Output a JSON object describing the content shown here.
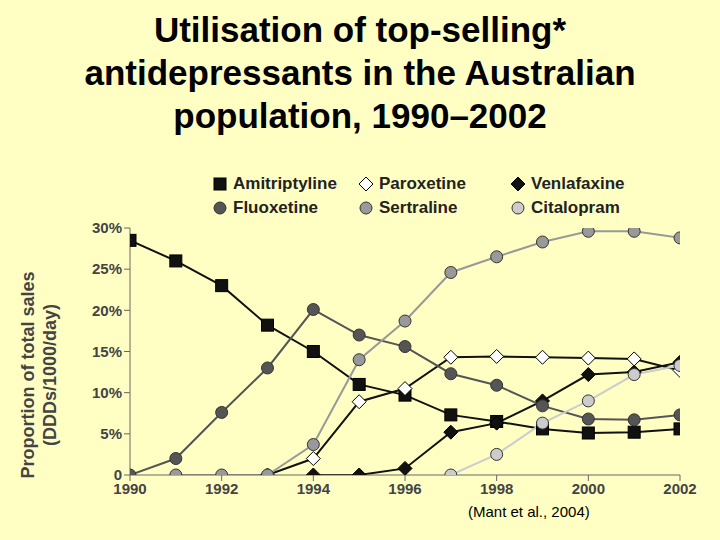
{
  "chart_data": {
    "type": "line",
    "title": "Utilisation of top-selling* antidepressants in the Australian population, 1990–2002",
    "y_label": "Proportion of total sales (DDDs/1000/day)",
    "annotation": "(Mant et al., 2004)",
    "legend": "top",
    "grid": false,
    "x": [
      1990,
      1991,
      1992,
      1993,
      1994,
      1995,
      1996,
      1997,
      1998,
      1999,
      2000,
      2001,
      2002
    ],
    "xlim": [
      1990,
      2002
    ],
    "xticks": [
      1990,
      1992,
      1994,
      1996,
      1998,
      2000,
      2002
    ],
    "ylim": [
      0,
      30
    ],
    "yticks": [
      0,
      {
        "value": 5,
        "label": "5%"
      },
      {
        "value": 10,
        "label": "10%"
      },
      {
        "value": 15,
        "label": "15%"
      },
      {
        "value": 20,
        "label": "20%"
      },
      {
        "value": 25,
        "label": "25%"
      },
      {
        "value": 30,
        "label": "30%"
      }
    ],
    "series": [
      {
        "name": "Amitriptyline",
        "color": "#111111",
        "marker": "square",
        "values": [
          28.5,
          26,
          23,
          18.2,
          15,
          11,
          9.7,
          7.3,
          6.5,
          5.6,
          5.1,
          5.2,
          5.6
        ]
      },
      {
        "name": "Paroxetine",
        "color": "#111111",
        "marker": "open_diamond",
        "values": [
          null,
          null,
          null,
          0,
          2,
          8.9,
          10.5,
          14.3,
          14.4,
          14.3,
          14.2,
          14.1,
          12.7
        ]
      },
      {
        "name": "Venlafaxine",
        "color": "#111111",
        "marker": "diamond",
        "values": [
          null,
          null,
          null,
          null,
          0,
          0,
          0.8,
          5.2,
          6.3,
          9,
          12.2,
          12.5,
          13.7
        ]
      },
      {
        "name": "Fluoxetine",
        "color": "#555555",
        "marker": "circle",
        "values": [
          0,
          2,
          7.6,
          13,
          20.1,
          17,
          15.6,
          12.3,
          10.9,
          8.4,
          6.8,
          6.7,
          7.3
        ]
      },
      {
        "name": "Sertraline",
        "color": "#999999",
        "marker": "circle",
        "values": [
          null,
          0,
          0,
          0,
          3.7,
          14,
          18.7,
          24.6,
          26.5,
          28.3,
          29.6,
          29.6,
          28.8
        ]
      },
      {
        "name": "Citalopram",
        "color": "#cccccc",
        "marker": "circle",
        "values": [
          null,
          null,
          null,
          null,
          null,
          null,
          null,
          0,
          2.5,
          6.3,
          9,
          12.2,
          13.3
        ]
      }
    ]
  }
}
